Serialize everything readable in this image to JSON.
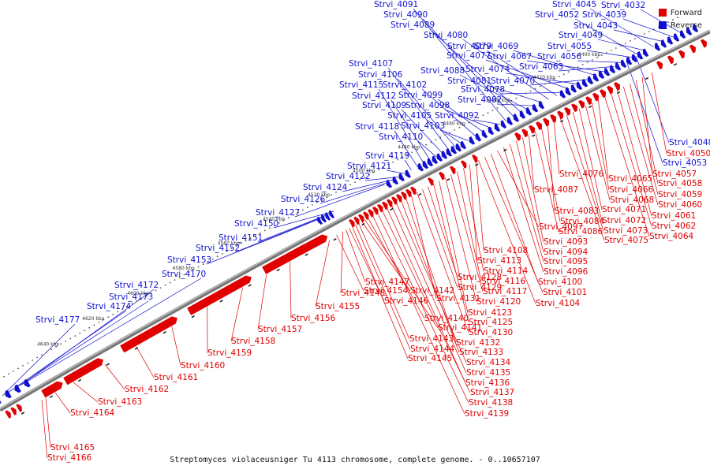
{
  "caption": "Streptomyces violaceusniger Tu 4113 chromosome, complete genome. - 0..10657107",
  "legend": {
    "forward_label": "Forward",
    "reverse_label": "Reverse",
    "forward_color": "#e00000",
    "reverse_color": "#1010d0"
  },
  "backbone_color": "#777777",
  "ticks": [
    "4400 kbp",
    "4420 kbp",
    "4440 kbp",
    "4460 kbp",
    "4480 kbp",
    "4500 kbp",
    "4520 kbp",
    "4540 kbp",
    "4560 kbp",
    "4580 kbp",
    "4600 kbp",
    "4620 kbp",
    "4640 kbp"
  ],
  "reverse_genes": [
    "Strvi_4032",
    "Strvi_4039",
    "Strvi_4043",
    "Strvi_4045",
    "Strvi_4049",
    "Strvi_4052",
    "Strvi_4055",
    "Strvi_4056",
    "Strvi_4063",
    "Strvi_4067",
    "Strvi_4069",
    "Strvi_4070",
    "Strvi_4074",
    "Strvi_4077",
    "Strvi_4078",
    "Strvi_4079",
    "Strvi_4080",
    "Strvi_4081",
    "Strvi_4082",
    "Strvi_4088",
    "Strvi_4089",
    "Strvi_4090",
    "Strvi_4091",
    "Strvi_4092",
    "Strvi_4098",
    "Strvi_4099",
    "Strvi_4102",
    "Strvi_4103",
    "Strvi_4105",
    "Strvi_4106",
    "Strvi_4107",
    "Strvi_4109",
    "Strvi_4110",
    "Strvi_4112",
    "Strvi_4115",
    "Strvi_4118",
    "Strvi_4119",
    "Strvi_4121",
    "Strvi_4122",
    "Strvi_4124",
    "Strvi_4126",
    "Strvi_4127",
    "Strvi_4150",
    "Strvi_4151",
    "Strvi_4152",
    "Strvi_4153",
    "Strvi_4170",
    "Strvi_4172",
    "Strvi_4173",
    "Strvi_4174",
    "Strvi_4177",
    "Strvi_4048",
    "Strvi_4053"
  ],
  "forward_genes_right": [
    "Strvi_4050",
    "Strvi_4057",
    "Strvi_4058",
    "Strvi_4059",
    "Strvi_4060",
    "Strvi_4061",
    "Strvi_4062",
    "Strvi_4064",
    "Strvi_4065",
    "Strvi_4066",
    "Strvi_4068",
    "Strvi_4071",
    "Strvi_4072",
    "Strvi_4073",
    "Strvi_4075",
    "Strvi_4076",
    "Strvi_4083",
    "Strvi_4084",
    "Strvi_4086",
    "Strvi_4087",
    "Strvi_4093",
    "Strvi_4094",
    "Strvi_4095",
    "Strvi_4096",
    "Strvi_4097",
    "Strvi_4100",
    "Strvi_4101",
    "Strvi_4104"
  ],
  "forward_genes_mid": [
    "Strvi_4108",
    "Strvi_4113",
    "Strvi_4114",
    "Strvi_4116",
    "Strvi_4117",
    "Strvi_4120",
    "Strvi_4123",
    "Strvi_4125",
    "Strvi_4128",
    "Strvi_4129",
    "Strvi_4130",
    "Strvi_4131",
    "Strvi_4132",
    "Strvi_4133",
    "Strvi_4134",
    "Strvi_4135",
    "Strvi_4136",
    "Strvi_4137",
    "Strvi_4138",
    "Strvi_4139",
    "Strvi_4140",
    "Strvi_4141",
    "Strvi_4142",
    "Strvi_4143",
    "Strvi_4144",
    "Strvi_4145",
    "Strvi_4146",
    "Strvi_4147",
    "Strvi_4148",
    "Strvi_4154"
  ],
  "forward_genes_left": [
    "Strvi_4155",
    "Strvi_4156",
    "Strvi_4157",
    "Strvi_4158",
    "Strvi_4159",
    "Strvi_4160",
    "Strvi_4161",
    "Strvi_4162",
    "Strvi_4163",
    "Strvi_4164",
    "Strvi_4165",
    "Strvi_4166"
  ]
}
